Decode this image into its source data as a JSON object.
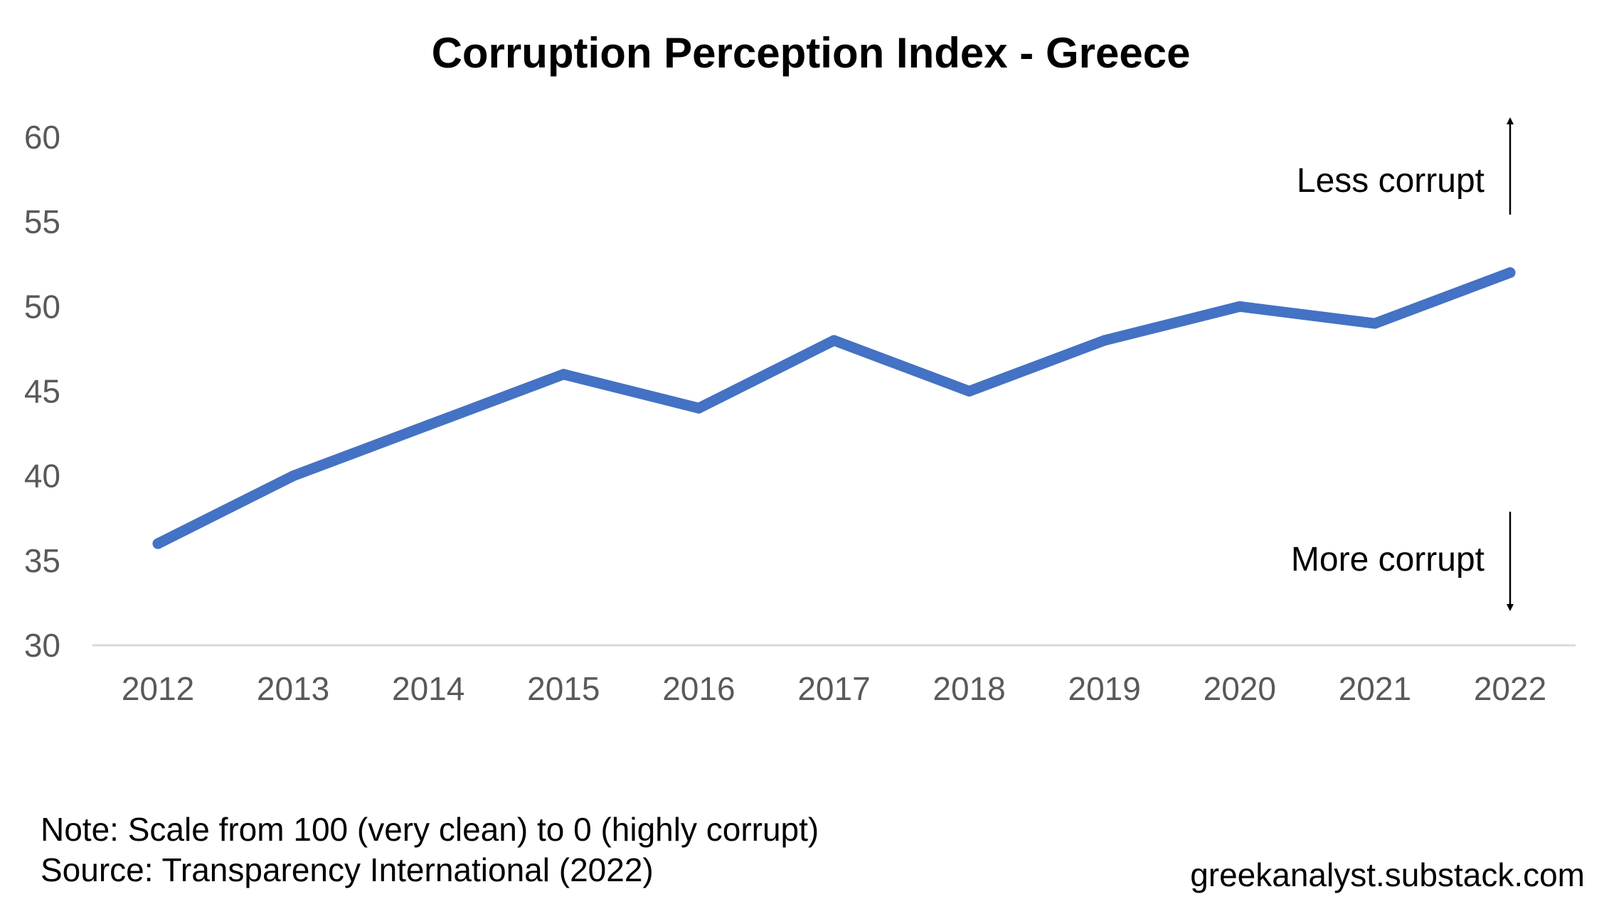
{
  "chart_data": {
    "type": "line",
    "title": "Corruption Perception Index - Greece",
    "categories": [
      "2012",
      "2013",
      "2014",
      "2015",
      "2016",
      "2017",
      "2018",
      "2019",
      "2020",
      "2021",
      "2022"
    ],
    "series": [
      {
        "values": [
          36,
          40,
          43,
          46,
          44,
          48,
          45,
          48,
          50,
          49,
          52
        ]
      }
    ],
    "ylim": [
      30,
      60
    ],
    "yticks": [
      30,
      35,
      40,
      45,
      50,
      55,
      60
    ],
    "grid": false,
    "line_color": "#4472C4",
    "annotations": {
      "up_label": "Less corrupt",
      "down_label": "More corrupt"
    }
  },
  "footer": {
    "note": "Note: Scale from 100 (very clean) to 0 (highly corrupt)",
    "source": "Source: Transparency International (2022)",
    "credit": "greekanalyst.substack.com"
  }
}
